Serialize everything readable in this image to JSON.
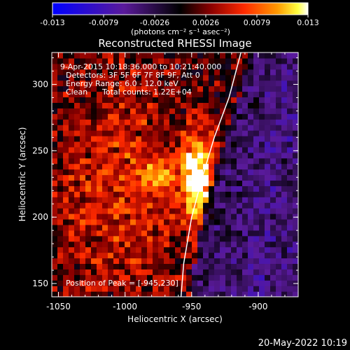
{
  "colorbar": {
    "ticks": [
      "-0.013",
      "-0.0079",
      "-0.0026",
      "0.0026",
      "0.0079",
      "0.013"
    ],
    "unit_label": "(photons cm⁻² s⁻¹ asec⁻²)",
    "colors": [
      "#0000ff",
      "#6a0dad",
      "#000000",
      "#8b0000",
      "#ff3300",
      "#ff9900",
      "#ffff00",
      "#ffffff"
    ]
  },
  "title": "Reconstructed RHESSI Image",
  "annotations": {
    "time_range": "9-Apr-2015 10:18:36.000 to 10:21:40.000",
    "detectors": "Detectors: 3F 5F 6F 7F 8F 9F, Att 0",
    "energy": "Energy Range: 6.0 - 12.0 keV",
    "clean": "Clean",
    "total_counts": "Total counts: 1.22E+04",
    "peak": "Position of Peak = [-945,230]"
  },
  "footer": {
    "date": "20-May-2022 10:19"
  },
  "chart_data": {
    "type": "heatmap",
    "title": "Reconstructed RHESSI Image",
    "xlabel": "Heliocentric X (arcsec)",
    "ylabel": "Heliocentric Y (arcsec)",
    "xlim": [
      -1055,
      -870
    ],
    "ylim": [
      140,
      324
    ],
    "xticks": [
      -1050,
      -1000,
      -950,
      -900
    ],
    "yticks": [
      150,
      200,
      250,
      300
    ],
    "xtick_labels": [
      "-1050",
      "-1000",
      "-950",
      "-900"
    ],
    "ytick_labels": [
      "150",
      "200",
      "250",
      "300"
    ],
    "zlim": [
      -0.013,
      0.013
    ],
    "peak": {
      "x": -945,
      "y": 230
    },
    "sources": [
      {
        "x": -945,
        "y": 230,
        "sx": 8,
        "sy": 22,
        "amp": 0.013
      },
      {
        "x": -975,
        "y": 234,
        "sx": 9,
        "sy": 9,
        "amp": 0.0065
      },
      {
        "x": -1005,
        "y": 222,
        "sx": 40,
        "sy": 60,
        "amp": 0.0045
      }
    ],
    "limb": [
      [
        -913,
        324
      ],
      [
        -922,
        290
      ],
      [
        -933,
        260
      ],
      [
        -942,
        230
      ],
      [
        -950,
        200
      ],
      [
        -956,
        165
      ],
      [
        -958,
        140
      ]
    ]
  }
}
